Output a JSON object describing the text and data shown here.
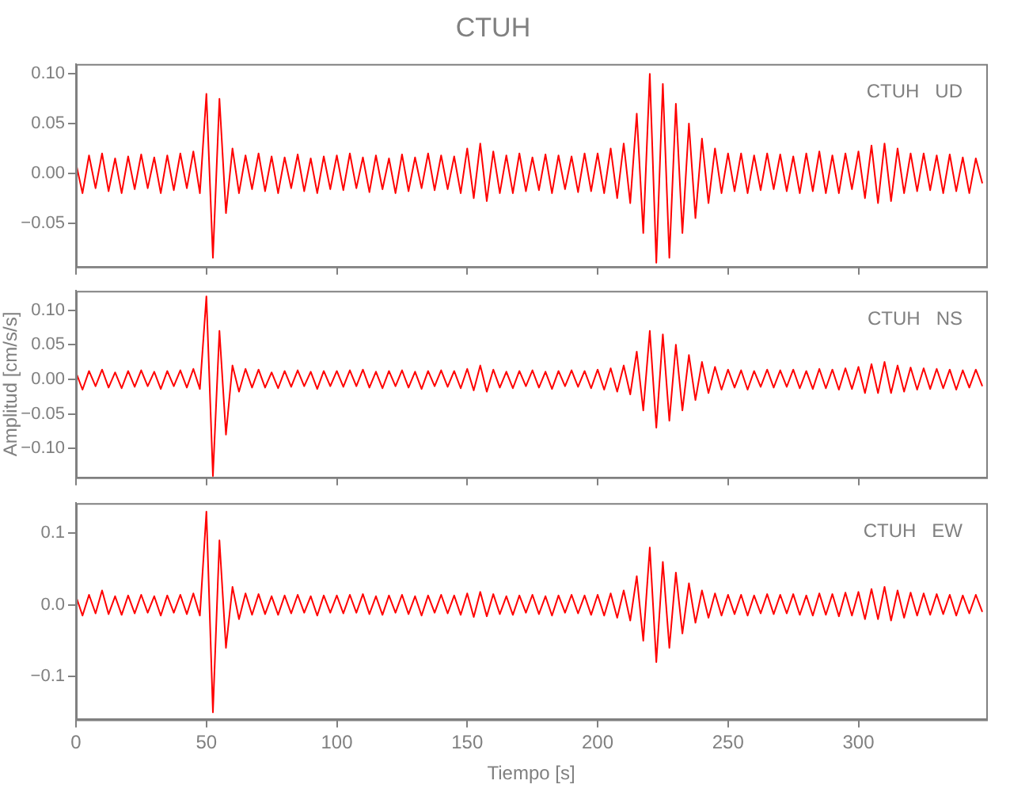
{
  "chart_data": [
    {
      "type": "line",
      "title": "CTUH",
      "annotations": [
        "CTUH   UD"
      ],
      "tick_labels": "y",
      "xlim": [
        0,
        349
      ],
      "xticks": [
        0,
        50,
        100,
        150,
        200,
        250,
        300
      ],
      "ylim": [
        -0.094,
        0.11
      ],
      "yticks": [
        {
          "value": 0.1,
          "label": "0.10"
        },
        {
          "value": 0.05,
          "label": "0.05"
        },
        {
          "value": 0,
          "label": "0.00"
        },
        {
          "value": -0.05,
          "label": "−0.05"
        }
      ],
      "x": [
        0,
        2.5,
        5,
        7.5,
        10,
        12.5,
        15,
        17.5,
        20,
        22.5,
        25,
        27.5,
        30,
        32.5,
        35,
        37.5,
        40,
        42.5,
        45,
        47.5,
        50,
        52.5,
        55,
        57.5,
        60,
        62.5,
        65,
        67.5,
        70,
        72.5,
        75,
        77.5,
        80,
        82.5,
        85,
        87.5,
        90,
        92.5,
        95,
        97.5,
        100,
        102.5,
        105,
        107.5,
        110,
        112.5,
        115,
        117.5,
        120,
        122.5,
        125,
        127.5,
        130,
        132.5,
        135,
        137.5,
        140,
        142.5,
        145,
        147.5,
        150,
        152.5,
        155,
        157.5,
        160,
        162.5,
        165,
        167.5,
        170,
        172.5,
        175,
        177.5,
        180,
        182.5,
        185,
        187.5,
        190,
        192.5,
        195,
        197.5,
        200,
        202.5,
        205,
        207.5,
        210,
        212.5,
        215,
        217.5,
        220,
        222.5,
        225,
        227.5,
        230,
        232.5,
        235,
        237.5,
        240,
        242.5,
        245,
        247.5,
        250,
        252.5,
        255,
        257.5,
        260,
        262.5,
        265,
        267.5,
        270,
        272.5,
        275,
        277.5,
        280,
        282.5,
        285,
        287.5,
        290,
        292.5,
        295,
        297.5,
        300,
        302.5,
        305,
        307.5,
        310,
        312.5,
        315,
        317.5,
        320,
        322.5,
        325,
        327.5,
        330,
        332.5,
        335,
        337.5,
        340,
        342.5,
        345,
        347.5
      ],
      "series": [
        {
          "color": "#ff0000",
          "values": [
            0.01,
            -0.02,
            0.018,
            -0.015,
            0.02,
            -0.018,
            0.015,
            -0.02,
            0.017,
            -0.016,
            0.019,
            -0.015,
            0.016,
            -0.02,
            0.018,
            -0.017,
            0.02,
            -0.015,
            0.022,
            -0.02,
            0.08,
            -0.085,
            0.075,
            -0.04,
            0.025,
            -0.02,
            0.018,
            -0.016,
            0.02,
            -0.018,
            0.017,
            -0.02,
            0.016,
            -0.015,
            0.019,
            -0.018,
            0.015,
            -0.02,
            0.017,
            -0.016,
            0.018,
            -0.017,
            0.02,
            -0.015,
            0.016,
            -0.019,
            0.018,
            -0.016,
            0.015,
            -0.02,
            0.019,
            -0.018,
            0.016,
            -0.015,
            0.02,
            -0.017,
            0.018,
            -0.016,
            0.017,
            -0.02,
            0.025,
            -0.025,
            0.03,
            -0.028,
            0.022,
            -0.02,
            0.018,
            -0.02,
            0.02,
            -0.018,
            0.016,
            -0.017,
            0.019,
            -0.02,
            0.018,
            -0.016,
            0.017,
            -0.019,
            0.02,
            -0.018,
            0.02,
            -0.02,
            0.025,
            -0.025,
            0.03,
            -0.03,
            0.06,
            -0.06,
            0.1,
            -0.09,
            0.09,
            -0.085,
            0.07,
            -0.06,
            0.05,
            -0.045,
            0.035,
            -0.03,
            0.025,
            -0.02,
            0.02,
            -0.018,
            0.02,
            -0.02,
            0.018,
            -0.017,
            0.02,
            -0.016,
            0.019,
            -0.018,
            0.017,
            -0.02,
            0.02,
            -0.018,
            0.022,
            -0.02,
            0.018,
            -0.02,
            0.02,
            -0.016,
            0.022,
            -0.025,
            0.028,
            -0.03,
            0.03,
            -0.028,
            0.025,
            -0.02,
            0.02,
            -0.018,
            0.02,
            -0.017,
            0.018,
            -0.02,
            0.019,
            -0.018,
            0.016,
            -0.02,
            0.015,
            -0.01
          ]
        }
      ]
    },
    {
      "type": "line",
      "ylabel": "Amplitud [cm/s/s]",
      "annotations": [
        "CTUH   NS"
      ],
      "tick_labels": "y",
      "xlim": [
        0,
        349
      ],
      "xticks": [
        0,
        50,
        100,
        150,
        200,
        250,
        300
      ],
      "ylim": [
        -0.142,
        0.128
      ],
      "yticks": [
        {
          "value": 0.1,
          "label": "0.10"
        },
        {
          "value": 0.05,
          "label": "0.05"
        },
        {
          "value": 0,
          "label": "0.00"
        },
        {
          "value": -0.05,
          "label": "−0.05"
        },
        {
          "value": -0.1,
          "label": "−0.10"
        }
      ],
      "x": [
        0,
        2.5,
        5,
        7.5,
        10,
        12.5,
        15,
        17.5,
        20,
        22.5,
        25,
        27.5,
        30,
        32.5,
        35,
        37.5,
        40,
        42.5,
        45,
        47.5,
        50,
        52.5,
        55,
        57.5,
        60,
        62.5,
        65,
        67.5,
        70,
        72.5,
        75,
        77.5,
        80,
        82.5,
        85,
        87.5,
        90,
        92.5,
        95,
        97.5,
        100,
        102.5,
        105,
        107.5,
        110,
        112.5,
        115,
        117.5,
        120,
        122.5,
        125,
        127.5,
        130,
        132.5,
        135,
        137.5,
        140,
        142.5,
        145,
        147.5,
        150,
        152.5,
        155,
        157.5,
        160,
        162.5,
        165,
        167.5,
        170,
        172.5,
        175,
        177.5,
        180,
        182.5,
        185,
        187.5,
        190,
        192.5,
        195,
        197.5,
        200,
        202.5,
        205,
        207.5,
        210,
        212.5,
        215,
        217.5,
        220,
        222.5,
        225,
        227.5,
        230,
        232.5,
        235,
        237.5,
        240,
        242.5,
        245,
        247.5,
        250,
        252.5,
        255,
        257.5,
        260,
        262.5,
        265,
        267.5,
        270,
        272.5,
        275,
        277.5,
        280,
        282.5,
        285,
        287.5,
        290,
        292.5,
        295,
        297.5,
        300,
        302.5,
        305,
        307.5,
        310,
        312.5,
        315,
        317.5,
        320,
        322.5,
        325,
        327.5,
        330,
        332.5,
        335,
        337.5,
        340,
        342.5,
        345,
        347.5
      ],
      "series": [
        {
          "color": "#ff0000",
          "values": [
            0.01,
            -0.015,
            0.012,
            -0.01,
            0.014,
            -0.012,
            0.01,
            -0.013,
            0.012,
            -0.011,
            0.013,
            -0.01,
            0.011,
            -0.014,
            0.012,
            -0.01,
            0.013,
            -0.012,
            0.015,
            -0.014,
            0.12,
            -0.14,
            0.07,
            -0.08,
            0.02,
            -0.018,
            0.015,
            -0.012,
            0.014,
            -0.012,
            0.01,
            -0.013,
            0.012,
            -0.011,
            0.013,
            -0.01,
            0.011,
            -0.014,
            0.012,
            -0.01,
            0.012,
            -0.011,
            0.013,
            -0.01,
            0.014,
            -0.012,
            0.011,
            -0.013,
            0.012,
            -0.01,
            0.013,
            -0.012,
            0.011,
            -0.014,
            0.012,
            -0.01,
            0.013,
            -0.011,
            0.012,
            -0.013,
            0.015,
            -0.016,
            0.02,
            -0.018,
            0.014,
            -0.012,
            0.011,
            -0.013,
            0.012,
            -0.01,
            0.013,
            -0.012,
            0.011,
            -0.014,
            0.012,
            -0.01,
            0.013,
            -0.011,
            0.012,
            -0.013,
            0.014,
            -0.015,
            0.016,
            -0.018,
            0.02,
            -0.022,
            0.04,
            -0.045,
            0.07,
            -0.07,
            0.065,
            -0.06,
            0.05,
            -0.045,
            0.035,
            -0.03,
            0.025,
            -0.02,
            0.018,
            -0.015,
            0.014,
            -0.012,
            0.013,
            -0.015,
            0.012,
            -0.011,
            0.014,
            -0.012,
            0.013,
            -0.011,
            0.014,
            -0.013,
            0.012,
            -0.014,
            0.015,
            -0.013,
            0.014,
            -0.015,
            0.016,
            -0.014,
            0.018,
            -0.02,
            0.022,
            -0.02,
            0.025,
            -0.02,
            0.02,
            -0.018,
            0.017,
            -0.015,
            0.016,
            -0.014,
            0.015,
            -0.013,
            0.014,
            -0.015,
            0.013,
            -0.012,
            0.014,
            -0.01
          ]
        }
      ]
    },
    {
      "type": "line",
      "xlabel": "Tiempo [s]",
      "annotations": [
        "CTUH   EW"
      ],
      "xlim": [
        0,
        349
      ],
      "xticks": [
        0,
        50,
        100,
        150,
        200,
        250,
        300
      ],
      "ylim": [
        -0.16,
        0.142
      ],
      "yticks": [
        {
          "value": 0.1,
          "label": "0.1"
        },
        {
          "value": 0,
          "label": "0.0"
        },
        {
          "value": -0.1,
          "label": "−0.1"
        }
      ],
      "x": [
        0,
        2.5,
        5,
        7.5,
        10,
        12.5,
        15,
        17.5,
        20,
        22.5,
        25,
        27.5,
        30,
        32.5,
        35,
        37.5,
        40,
        42.5,
        45,
        47.5,
        50,
        52.5,
        55,
        57.5,
        60,
        62.5,
        65,
        67.5,
        70,
        72.5,
        75,
        77.5,
        80,
        82.5,
        85,
        87.5,
        90,
        92.5,
        95,
        97.5,
        100,
        102.5,
        105,
        107.5,
        110,
        112.5,
        115,
        117.5,
        120,
        122.5,
        125,
        127.5,
        130,
        132.5,
        135,
        137.5,
        140,
        142.5,
        145,
        147.5,
        150,
        152.5,
        155,
        157.5,
        160,
        162.5,
        165,
        167.5,
        170,
        172.5,
        175,
        177.5,
        180,
        182.5,
        185,
        187.5,
        190,
        192.5,
        195,
        197.5,
        200,
        202.5,
        205,
        207.5,
        210,
        212.5,
        215,
        217.5,
        220,
        222.5,
        225,
        227.5,
        230,
        232.5,
        235,
        237.5,
        240,
        242.5,
        245,
        247.5,
        250,
        252.5,
        255,
        257.5,
        260,
        262.5,
        265,
        267.5,
        270,
        272.5,
        275,
        277.5,
        280,
        282.5,
        285,
        287.5,
        290,
        292.5,
        295,
        297.5,
        300,
        302.5,
        305,
        307.5,
        310,
        312.5,
        315,
        317.5,
        320,
        322.5,
        325,
        327.5,
        330,
        332.5,
        335,
        337.5,
        340,
        342.5,
        345,
        347.5
      ],
      "series": [
        {
          "color": "#ff0000",
          "values": [
            0.012,
            -0.015,
            0.014,
            -0.012,
            0.02,
            -0.013,
            0.012,
            -0.014,
            0.013,
            -0.012,
            0.014,
            -0.011,
            0.012,
            -0.015,
            0.013,
            -0.011,
            0.014,
            -0.013,
            0.016,
            -0.015,
            0.13,
            -0.15,
            0.09,
            -0.06,
            0.025,
            -0.02,
            0.016,
            -0.014,
            0.015,
            -0.013,
            0.012,
            -0.014,
            0.013,
            -0.012,
            0.014,
            -0.011,
            0.012,
            -0.015,
            0.013,
            -0.011,
            0.013,
            -0.012,
            0.014,
            -0.011,
            0.015,
            -0.013,
            0.012,
            -0.014,
            0.013,
            -0.011,
            0.014,
            -0.013,
            0.012,
            -0.015,
            0.013,
            -0.011,
            0.014,
            -0.012,
            0.013,
            -0.014,
            0.016,
            -0.017,
            0.018,
            -0.016,
            0.015,
            -0.013,
            0.012,
            -0.014,
            0.013,
            -0.011,
            0.014,
            -0.013,
            0.012,
            -0.015,
            0.013,
            -0.011,
            0.014,
            -0.012,
            0.013,
            -0.014,
            0.014,
            -0.015,
            0.016,
            -0.018,
            0.02,
            -0.022,
            0.04,
            -0.05,
            0.08,
            -0.08,
            0.06,
            -0.06,
            0.045,
            -0.04,
            0.03,
            -0.025,
            0.02,
            -0.018,
            0.016,
            -0.015,
            0.014,
            -0.013,
            0.014,
            -0.015,
            0.013,
            -0.012,
            0.015,
            -0.013,
            0.014,
            -0.012,
            0.015,
            -0.014,
            0.013,
            -0.015,
            0.016,
            -0.014,
            0.015,
            -0.016,
            0.017,
            -0.015,
            0.018,
            -0.02,
            0.022,
            -0.02,
            0.025,
            -0.022,
            0.02,
            -0.018,
            0.017,
            -0.015,
            0.016,
            -0.014,
            0.015,
            -0.013,
            0.014,
            -0.015,
            0.013,
            -0.012,
            0.014,
            -0.01
          ]
        }
      ]
    }
  ]
}
